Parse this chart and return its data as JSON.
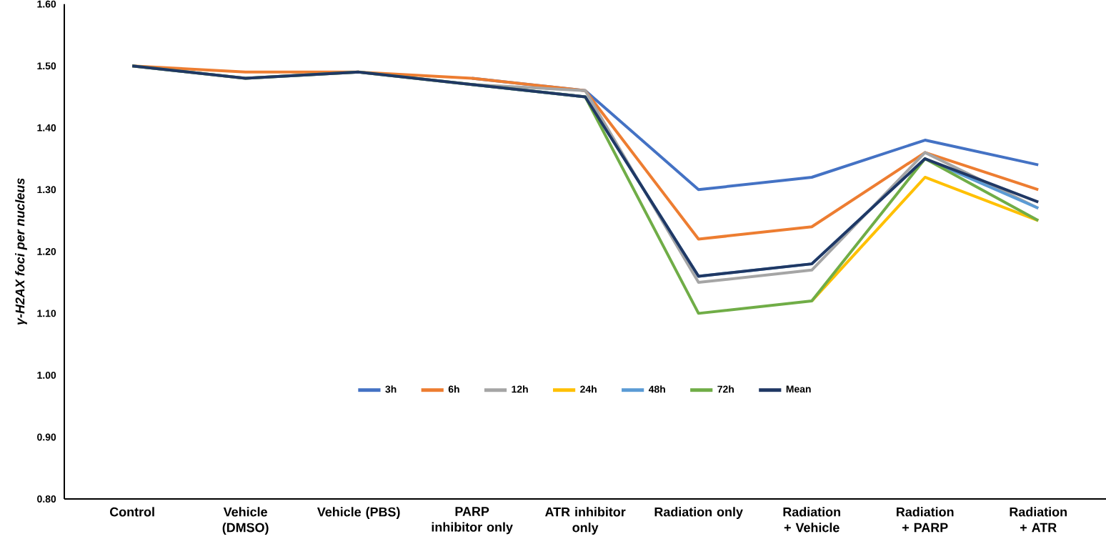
{
  "chart_data": {
    "type": "line",
    "ylabel": "γ-H2AX foci per nucleus",
    "categories": [
      "Control",
      "Vehicle (DMSO)",
      "Vehicle (PBS)",
      "PARP inhibitor only",
      "ATR inhibitor only",
      "Radiation only",
      "Radiation + Vehicle",
      "Radiation + PARP",
      "Radiation + ATR"
    ],
    "series": [
      {
        "name": "3h",
        "color": "#4472c4",
        "values": [
          null,
          null,
          null,
          1.48,
          1.46,
          1.3,
          1.32,
          1.38,
          1.34
        ]
      },
      {
        "name": "6h",
        "color": "#ed7d31",
        "values": [
          1.5,
          1.49,
          1.49,
          1.48,
          1.46,
          1.22,
          1.24,
          1.36,
          1.3
        ]
      },
      {
        "name": "12h",
        "color": "#a5a5a5",
        "values": [
          1.5,
          1.48,
          1.49,
          1.47,
          1.46,
          1.15,
          1.17,
          1.36,
          1.27
        ]
      },
      {
        "name": "24h",
        "color": "#ffc000",
        "values": [
          null,
          null,
          null,
          null,
          null,
          null,
          1.12,
          1.32,
          1.25
        ]
      },
      {
        "name": "48h",
        "color": "#5b9bd5",
        "values": [
          null,
          null,
          null,
          1.47,
          1.45,
          1.16,
          1.18,
          1.35,
          1.27
        ]
      },
      {
        "name": "72h",
        "color": "#70ad47",
        "values": [
          1.5,
          1.48,
          1.49,
          1.47,
          1.45,
          1.1,
          1.12,
          1.35,
          1.25
        ]
      },
      {
        "name": "Mean",
        "color": "#203864",
        "values": [
          1.5,
          1.48,
          1.49,
          1.47,
          1.45,
          1.16,
          1.18,
          1.35,
          1.28
        ]
      }
    ],
    "ylim": [
      0.8,
      1.6
    ],
    "yticks": [
      {
        "value": 0.8,
        "label": "0.80"
      },
      {
        "value": 0.9,
        "label": "0.90"
      },
      {
        "value": 1.0,
        "label": "1.00"
      },
      {
        "value": 1.1,
        "label": "1.10"
      },
      {
        "value": 1.2,
        "label": "1.20"
      },
      {
        "value": 1.3,
        "label": "1.30"
      },
      {
        "value": 1.4,
        "label": "1.40"
      },
      {
        "value": 1.5,
        "label": "1.50"
      },
      {
        "value": 1.6,
        "label": "1.60"
      }
    ],
    "legend": "bottom",
    "grid": false,
    "marker": "none",
    "line_style": "solid"
  }
}
